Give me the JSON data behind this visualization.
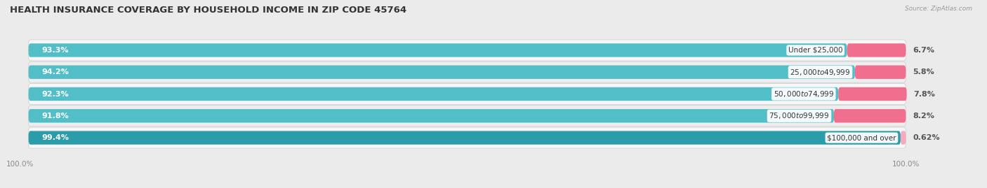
{
  "title": "HEALTH INSURANCE COVERAGE BY HOUSEHOLD INCOME IN ZIP CODE 45764",
  "source": "Source: ZipAtlas.com",
  "categories": [
    "Under $25,000",
    "$25,000 to $49,999",
    "$50,000 to $74,999",
    "$75,000 to $99,999",
    "$100,000 and over"
  ],
  "with_coverage": [
    93.3,
    94.2,
    92.3,
    91.8,
    99.4
  ],
  "without_coverage": [
    6.7,
    5.8,
    7.8,
    8.2,
    0.62
  ],
  "color_with": "#52bec8",
  "color_with_last": "#2b9daa",
  "color_without_1": "#f06e8e",
  "color_without_last": "#f5aabe",
  "bg_color": "#ebebeb",
  "row_bg_odd": "#f8f8f8",
  "row_bg_even": "#efefef",
  "title_fontsize": 9.5,
  "label_fontsize": 8,
  "tick_fontsize": 7.5,
  "legend_fontsize": 8,
  "bar_height": 0.62,
  "total_width": 100
}
